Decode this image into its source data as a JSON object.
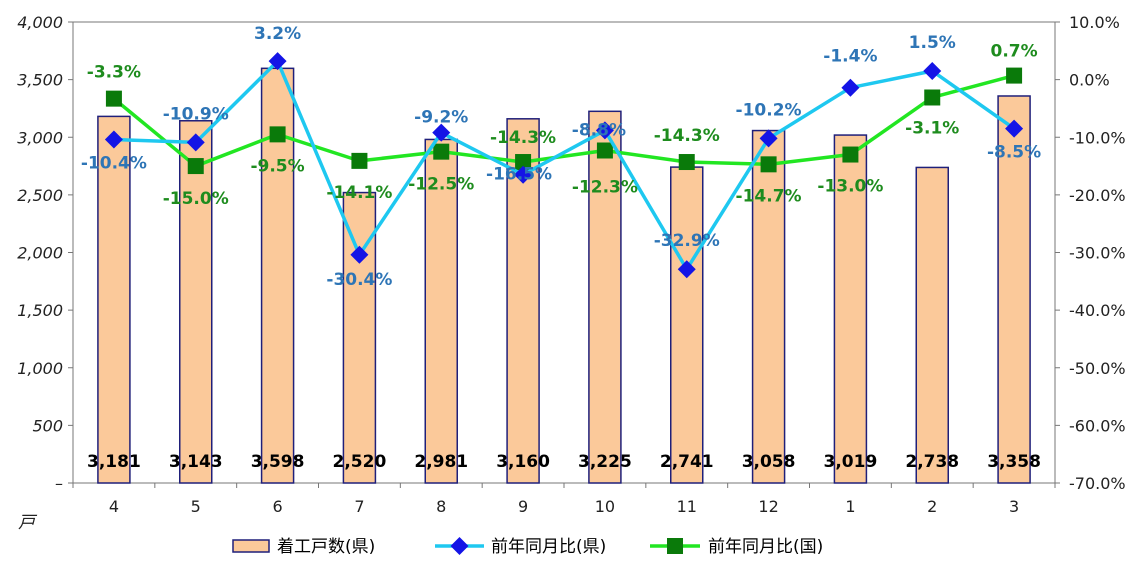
{
  "chart_data": {
    "type": "bar",
    "categories": [
      "4",
      "5",
      "6",
      "7",
      "8",
      "9",
      "10",
      "11",
      "12",
      "1",
      "2",
      "3"
    ],
    "unit_label": "戸",
    "y_left": {
      "range": [
        0,
        4000
      ],
      "ticks": [
        "–",
        "500",
        "1,000",
        "1,500",
        "2,000",
        "2,500",
        "3,000",
        "3,500",
        "4,000"
      ]
    },
    "y_right": {
      "range": [
        -70,
        10
      ],
      "ticks": [
        "-70.0%",
        "-60.0%",
        "-50.0%",
        "-40.0%",
        "-30.0%",
        "-20.0%",
        "-10.0%",
        "0.0%",
        "10.0%"
      ]
    },
    "series": [
      {
        "name": "着工戸数(県)",
        "kind": "bar",
        "axis": "left",
        "color": "#fbc99a",
        "stroke": "#1f1f7a",
        "values": [
          3181,
          3143,
          3598,
          2520,
          2981,
          3160,
          3225,
          2741,
          3058,
          3019,
          2738,
          3358
        ],
        "labels": [
          "3,181",
          "3,143",
          "3,598",
          "2,520",
          "2,981",
          "3,160",
          "3,225",
          "2,741",
          "3,058",
          "3,019",
          "2,738",
          "3,358"
        ]
      },
      {
        "name": "前年同月比(県)",
        "kind": "line",
        "axis": "right",
        "color": "#1ec8f0",
        "marker_color": "#1414e6",
        "marker": "diamond",
        "values": [
          -10.4,
          -10.9,
          3.2,
          -30.4,
          -9.2,
          -16.5,
          -8.8,
          -32.9,
          -10.2,
          -1.4,
          1.5,
          -8.5
        ],
        "labels": [
          "-10.4%",
          "-10.9%",
          "3.2%",
          "-30.4%",
          "-9.2%",
          "-16.5%",
          "-8.8%",
          "-32.9%",
          "-10.2%",
          "-1.4%",
          "1.5%",
          "-8.5%"
        ]
      },
      {
        "name": "前年同月比(国)",
        "kind": "line",
        "axis": "right",
        "color": "#22e622",
        "marker_color": "#0a7a0a",
        "marker": "square",
        "values": [
          -3.3,
          -15.0,
          -9.5,
          -14.1,
          -12.5,
          -14.3,
          -12.3,
          -14.3,
          -14.7,
          -13.0,
          -3.1,
          0.7
        ],
        "labels": [
          "-3.3%",
          "-15.0%",
          "-9.5%",
          "-14.1%",
          "-12.5%",
          "-14.3%",
          "-12.3%",
          "-14.3%",
          "-14.7%",
          "-13.0%",
          "-3.1%",
          "0.7%"
        ]
      }
    ]
  }
}
